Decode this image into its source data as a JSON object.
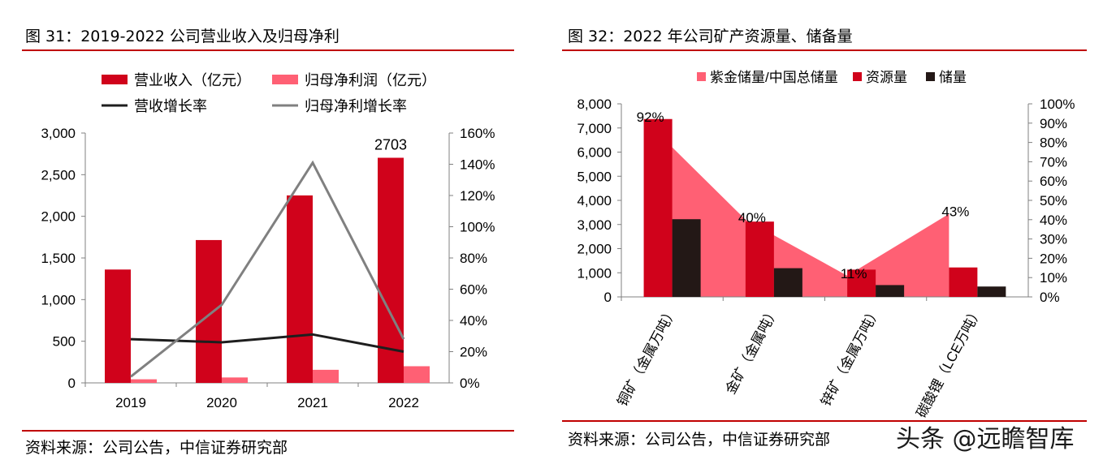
{
  "left": {
    "title": "图 31：2019-2022 公司营业收入及归母净利",
    "source": "资料来源：公司公告，中信证券研究部"
  },
  "right": {
    "title": "图 32：2022 年公司矿产资源量、储备量",
    "source": "资料来源：公司公告，中信证券研究部"
  },
  "watermark": "头条 @远瞻智库",
  "colors": {
    "dark_red": "#d0021b",
    "pink": "#ff6074",
    "black_line": "#1e1e1e",
    "gray_line": "#808080",
    "dark_bar": "#231816",
    "rule": "#c00000"
  },
  "chart_data": [
    {
      "type": "bar",
      "categories": [
        "2019",
        "2020",
        "2021",
        "2022"
      ],
      "series": [
        {
          "name": "营业收入（亿元）",
          "type": "bar",
          "axis": "left",
          "color": "#d0021b",
          "values": [
            1361,
            1715,
            2251,
            2703
          ]
        },
        {
          "name": "归母净利润（亿元）",
          "type": "bar",
          "axis": "left",
          "color": "#ff6074",
          "values": [
            43,
            65,
            157,
            200
          ]
        },
        {
          "name": "营收增长率",
          "type": "line",
          "axis": "right",
          "color": "#1e1e1e",
          "values": [
            28,
            26,
            31,
            20
          ]
        },
        {
          "name": "归母净利增长率",
          "type": "line",
          "axis": "right",
          "color": "#808080",
          "values": [
            4,
            50,
            141,
            28
          ]
        }
      ],
      "data_labels": [
        {
          "series": "营业收入（亿元）",
          "category": "2022",
          "text": "2703"
        }
      ],
      "y_left": {
        "ticks": [
          "0",
          "500",
          "1,000",
          "1,500",
          "2,000",
          "2,500",
          "3,000"
        ],
        "ylim": [
          0,
          3000
        ]
      },
      "y_right": {
        "ticks": [
          "0%",
          "20%",
          "40%",
          "60%",
          "80%",
          "100%",
          "120%",
          "140%",
          "160%"
        ],
        "ylim": [
          0,
          160
        ]
      },
      "legend_position": "top",
      "grid": false
    },
    {
      "type": "bar",
      "categories": [
        "铜矿（金属万吨）",
        "金矿（金属吨）",
        "锌矿（金属万吨）",
        "碳酸锂（LCE万吨）"
      ],
      "series": [
        {
          "name": "紫金储量/中国总储量",
          "type": "area",
          "axis": "right",
          "color": "#ff6074",
          "values": [
            92,
            40,
            11,
            43
          ]
        },
        {
          "name": "资源量",
          "type": "bar",
          "axis": "left",
          "color": "#d0021b",
          "values": [
            7370,
            3120,
            1130,
            1220
          ]
        },
        {
          "name": "储量",
          "type": "bar",
          "axis": "left",
          "color": "#231816",
          "values": [
            3220,
            1190,
            490,
            430
          ]
        }
      ],
      "data_labels": [
        {
          "series": "紫金储量/中国总储量",
          "category": "铜矿（金属万吨）",
          "text": "92%"
        },
        {
          "series": "紫金储量/中国总储量",
          "category": "金矿（金属吨）",
          "text": "40%"
        },
        {
          "series": "紫金储量/中国总储量",
          "category": "锌矿（金属万吨）",
          "text": "11%"
        },
        {
          "series": "紫金储量/中国总储量",
          "category": "碳酸锂（LCE万吨）",
          "text": "43%"
        }
      ],
      "y_left": {
        "ticks": [
          "0",
          "1,000",
          "2,000",
          "3,000",
          "4,000",
          "5,000",
          "6,000",
          "7,000",
          "8,000"
        ],
        "ylim": [
          0,
          8000
        ]
      },
      "y_right": {
        "ticks": [
          "0%",
          "10%",
          "20%",
          "30%",
          "40%",
          "50%",
          "60%",
          "70%",
          "80%",
          "90%",
          "100%"
        ],
        "ylim": [
          0,
          100
        ]
      },
      "legend_position": "top",
      "grid": false
    }
  ]
}
